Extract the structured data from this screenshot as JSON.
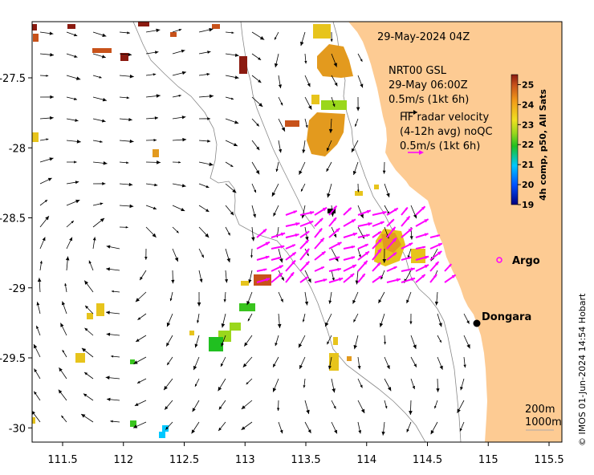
{
  "map": {
    "timestamp": "29-May-2024 04Z",
    "model": {
      "line1": "NRT00 GSL",
      "line2": "29-May 06:00Z",
      "line3": "0.5m/s (1kt 6h)"
    },
    "radar": {
      "line1": "HF radar velocity",
      "line2": "(4-12h avg) noQC",
      "line3": "0.5m/s (1kt 6h)"
    },
    "places": {
      "argo": "Argo",
      "dongara": "Dongara"
    },
    "depth_contours": {
      "shallow": "200m",
      "deep": "1000m"
    },
    "colorbar": {
      "label": "4h comp, p50, All Sats",
      "ticks": [
        "25",
        "24",
        "23",
        "22",
        "21",
        "20",
        "19"
      ],
      "range": [
        19,
        25.5
      ]
    },
    "credit": "© IMOS 01-Jun-2024 14:54 Hobart",
    "lon_ticks": [
      "111.5",
      "112",
      "112.5",
      "113",
      "113.5",
      "114",
      "114.5",
      "115",
      "115.5"
    ],
    "lat_ticks": [
      "-27.5",
      "-28",
      "-28.5",
      "-29",
      "-29.5",
      "-30"
    ],
    "colors": {
      "land": "#fdcb93",
      "radar_arrow": "#ff00ff",
      "model_arrow": "#000000",
      "sst_warm": "#e39a1e",
      "sst_mid": "#e7c41c",
      "sst_cool": "#39c41e"
    }
  }
}
